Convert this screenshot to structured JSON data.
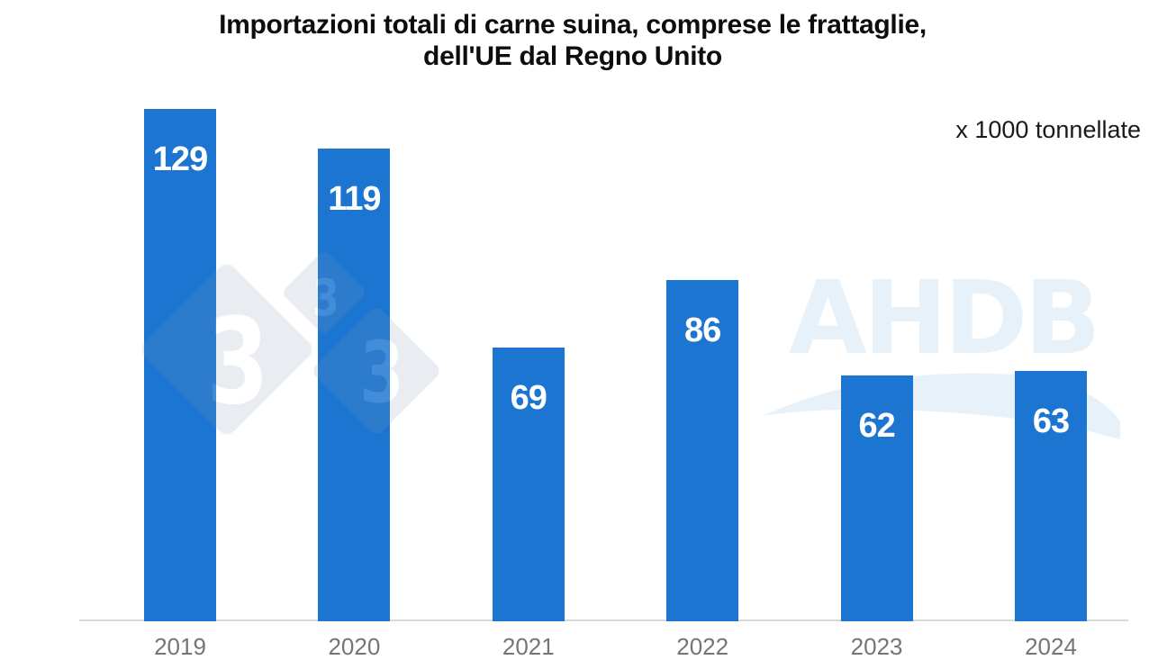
{
  "chart_data": {
    "type": "bar",
    "title": "Importazioni totali di carne suina, comprese le frattaglie,\ndell'UE dal Regno Unito",
    "unit_label": "x 1000 tonnellate",
    "categories": [
      "2019",
      "2020",
      "2021",
      "2022",
      "2023",
      "2024"
    ],
    "values": [
      129,
      119,
      69,
      86,
      62,
      63
    ],
    "xlabel": "",
    "ylabel": "",
    "ylim": [
      0,
      130
    ],
    "grid": false,
    "legend": "none",
    "value_labels_position": "inside-top",
    "bar_color": "#1b75d1",
    "value_label_color": "#ffffff",
    "axis_line_color": "#d9d9d9",
    "tick_label_color": "#757575"
  },
  "watermarks": {
    "ahdb": {
      "text": "AHDB",
      "color": "#e7f1fa"
    },
    "pig333": {
      "digits": [
        "3",
        "3",
        "3"
      ],
      "diamond_color": "#8098b8",
      "digit_color": "#ffffff"
    }
  }
}
